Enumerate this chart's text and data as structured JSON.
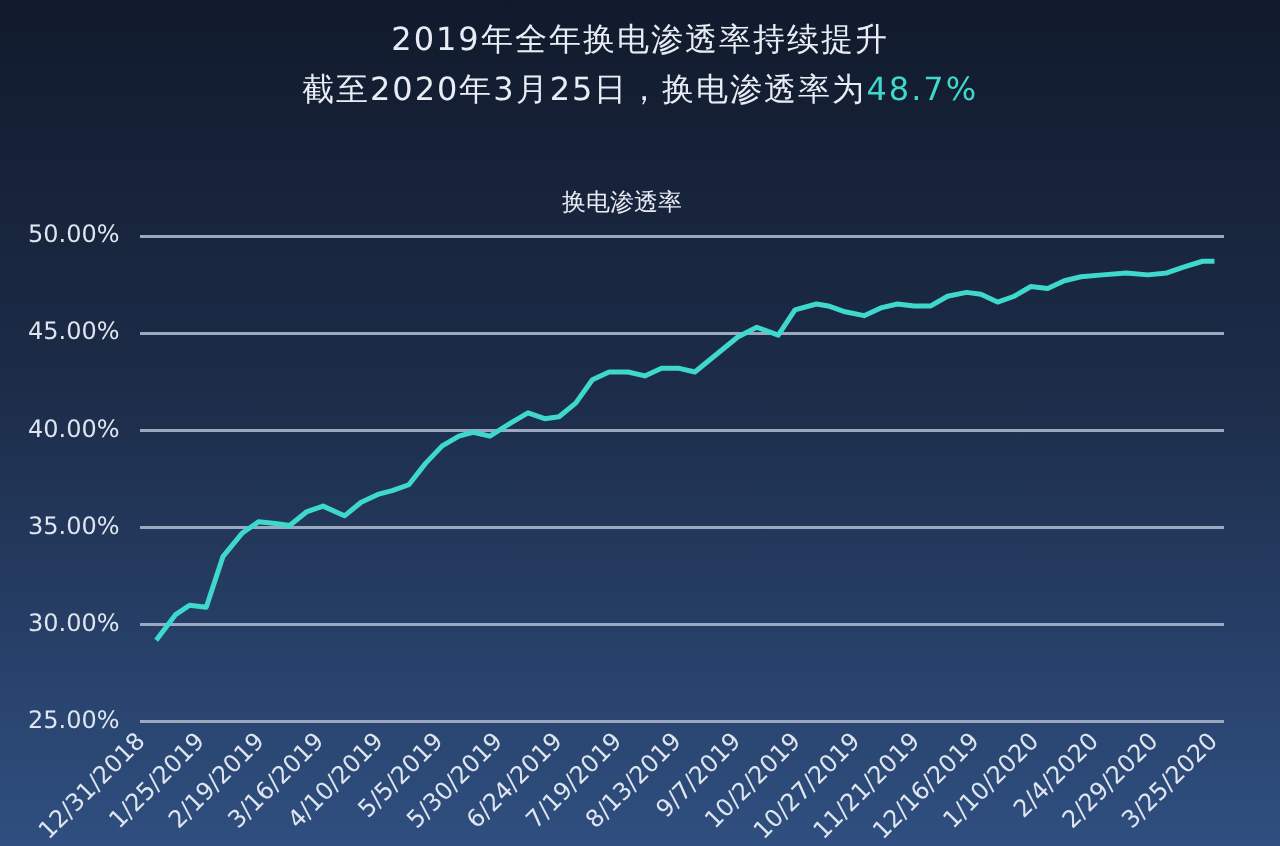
{
  "chart_data": {
    "type": "line",
    "title": "2019年全年换电渗透率持续提升",
    "subtitle": "截至2020年3月25日，换电渗透率为48.7%",
    "x": [
      "2019-01-06",
      "2019-01-14",
      "2019-01-20",
      "2019-01-27",
      "2019-02-03",
      "2019-02-11",
      "2019-02-18",
      "2019-02-25",
      "2019-03-03",
      "2019-03-10",
      "2019-03-17",
      "2019-03-26",
      "2019-04-02",
      "2019-04-09",
      "2019-04-15",
      "2019-04-22",
      "2019-04-29",
      "2019-05-06",
      "2019-05-13",
      "2019-05-19",
      "2019-05-26",
      "2019-06-04",
      "2019-06-11",
      "2019-06-18",
      "2019-06-24",
      "2019-07-01",
      "2019-07-08",
      "2019-07-15",
      "2019-07-23",
      "2019-07-30",
      "2019-08-06",
      "2019-08-13",
      "2019-08-20",
      "2019-08-29",
      "2019-09-07",
      "2019-09-15",
      "2019-09-24",
      "2019-10-01",
      "2019-10-10",
      "2019-10-15",
      "2019-10-22",
      "2019-10-30",
      "2019-11-06",
      "2019-11-13",
      "2019-11-20",
      "2019-11-27",
      "2019-12-04",
      "2019-12-12",
      "2019-12-18",
      "2019-12-25",
      "2020-01-01",
      "2020-01-08",
      "2020-01-15",
      "2020-01-22",
      "2020-01-29",
      "2020-02-07",
      "2020-02-17",
      "2020-02-26",
      "2020-03-05",
      "2020-03-12",
      "2020-03-20",
      "2020-03-25"
    ],
    "series": [
      {
        "name": "换电渗透率",
        "color": "#3fd8cc",
        "values": [
          29.2,
          30.5,
          31.0,
          30.9,
          33.5,
          34.7,
          35.3,
          35.2,
          35.1,
          35.8,
          36.1,
          35.6,
          36.3,
          36.7,
          36.9,
          37.2,
          38.3,
          39.2,
          39.7,
          39.9,
          39.7,
          40.4,
          40.9,
          40.6,
          40.7,
          41.4,
          42.6,
          43.0,
          43.0,
          42.8,
          43.2,
          43.2,
          43.0,
          43.9,
          44.8,
          45.3,
          44.9,
          46.2,
          46.5,
          46.4,
          46.1,
          45.9,
          46.3,
          46.5,
          46.4,
          46.4,
          46.9,
          47.1,
          47.0,
          46.6,
          46.9,
          47.4,
          47.3,
          47.7,
          47.9,
          48.0,
          48.1,
          48.0,
          48.1,
          48.4,
          48.7,
          48.7
        ]
      }
    ],
    "xlim": [
      "2018-12-30",
      "2020-03-29"
    ],
    "xticks": [
      {
        "value": "2018-12-31",
        "label": "12/31/2018"
      },
      {
        "value": "2019-01-25",
        "label": "1/25/2019"
      },
      {
        "value": "2019-02-19",
        "label": "2/19/2019"
      },
      {
        "value": "2019-03-16",
        "label": "3/16/2019"
      },
      {
        "value": "2019-04-10",
        "label": "4/10/2019"
      },
      {
        "value": "2019-05-05",
        "label": "5/5/2019"
      },
      {
        "value": "2019-05-30",
        "label": "5/30/2019"
      },
      {
        "value": "2019-06-24",
        "label": "6/24/2019"
      },
      {
        "value": "2019-07-19",
        "label": "7/19/2019"
      },
      {
        "value": "2019-08-13",
        "label": "8/13/2019"
      },
      {
        "value": "2019-09-07",
        "label": "9/7/2019"
      },
      {
        "value": "2019-10-02",
        "label": "10/2/2019"
      },
      {
        "value": "2019-10-27",
        "label": "10/27/2019"
      },
      {
        "value": "2019-11-21",
        "label": "11/21/2019"
      },
      {
        "value": "2019-12-16",
        "label": "12/16/2019"
      },
      {
        "value": "2020-01-10",
        "label": "1/10/2020"
      },
      {
        "value": "2020-02-04",
        "label": "2/4/2020"
      },
      {
        "value": "2020-02-29",
        "label": "2/29/2020"
      },
      {
        "value": "2020-03-25",
        "label": "3/25/2020"
      }
    ],
    "ylim": [
      25,
      50
    ],
    "yticks": [
      {
        "value": 25,
        "label": "25.00%"
      },
      {
        "value": 30,
        "label": "30.00%"
      },
      {
        "value": 35,
        "label": "35.00%"
      },
      {
        "value": 40,
        "label": "40.00%"
      },
      {
        "value": 45,
        "label": "45.00%"
      },
      {
        "value": 50,
        "label": "50.00%"
      }
    ],
    "grid": "y",
    "legend": "top",
    "marker": "none",
    "line_style": "solid"
  }
}
